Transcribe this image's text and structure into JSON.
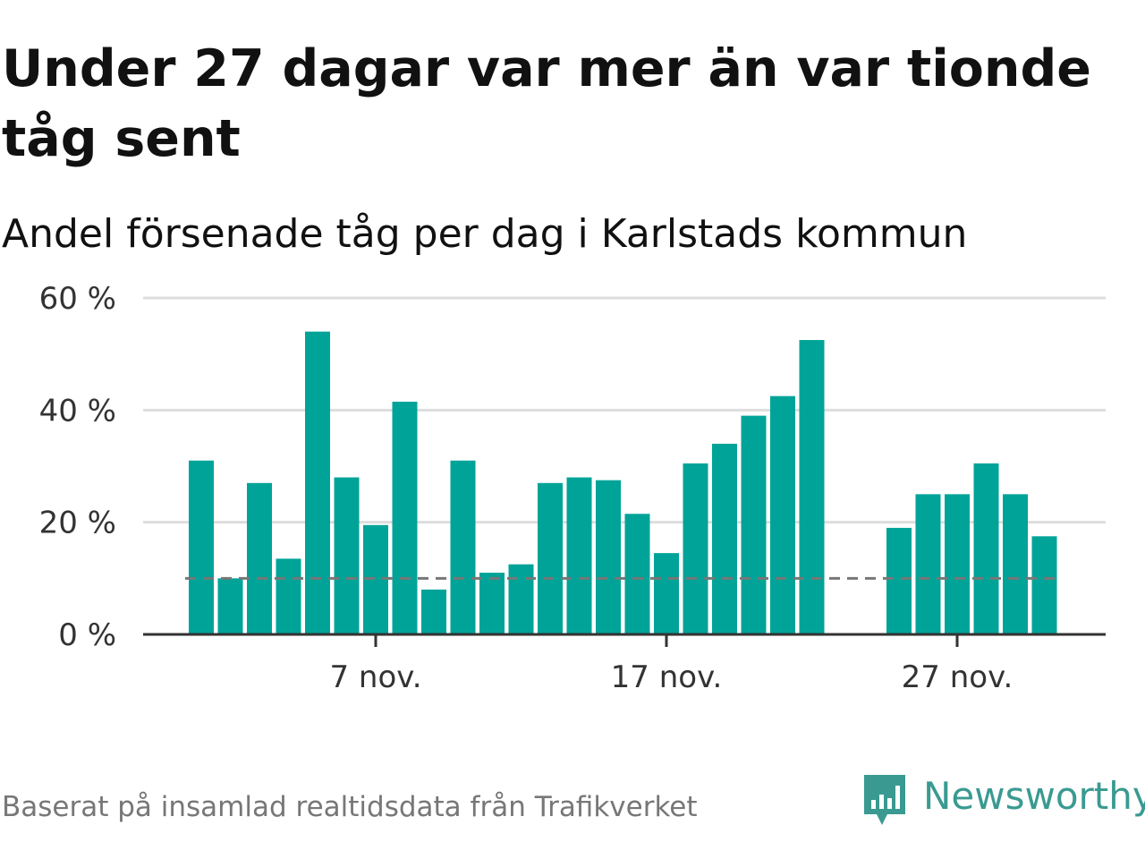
{
  "title": "Under 27 dagar var mer än var tionde tåg sent",
  "subtitle": "Andel försenade tåg per dag i Karlstads kommun",
  "footer": "Baserat på insamlad realtidsdata från Trafikverket",
  "brand": {
    "name": "Newsworthy",
    "color": "#3a9a91",
    "icon": "newsworthy-logo-icon"
  },
  "colors": {
    "bar": "#00a398",
    "grid": "#dddddd",
    "axis": "#333333",
    "reference": "#777777"
  },
  "chart_data": {
    "type": "bar",
    "title": "Under 27 dagar var mer än var tionde tåg sent",
    "subtitle": "Andel försenade tåg per dag i Karlstads kommun",
    "xlabel": "",
    "ylabel": "",
    "ylim": [
      0,
      60
    ],
    "y_ticks": [
      {
        "value": 0,
        "label": "0 %"
      },
      {
        "value": 20,
        "label": "20 %"
      },
      {
        "value": 40,
        "label": "40 %"
      },
      {
        "value": 60,
        "label": "60 %"
      }
    ],
    "x_ticks": [
      {
        "day": 7,
        "label": "7 nov."
      },
      {
        "day": 17,
        "label": "17 nov."
      },
      {
        "day": 27,
        "label": "27 nov."
      }
    ],
    "reference_line": 10,
    "grid": true,
    "legend": "none",
    "days": [
      1,
      2,
      3,
      4,
      5,
      6,
      7,
      8,
      9,
      10,
      11,
      12,
      13,
      14,
      15,
      16,
      17,
      18,
      19,
      20,
      21,
      22,
      23,
      24,
      25,
      26,
      27,
      28,
      29,
      30
    ],
    "values": [
      31,
      10,
      27,
      13.5,
      54,
      28,
      19.5,
      41.5,
      8,
      31,
      11,
      12.5,
      27,
      28,
      27.5,
      21.5,
      14.5,
      30.5,
      34,
      39,
      42.5,
      52.5,
      null,
      null,
      19,
      25,
      25,
      30.5,
      25,
      17.5
    ]
  }
}
